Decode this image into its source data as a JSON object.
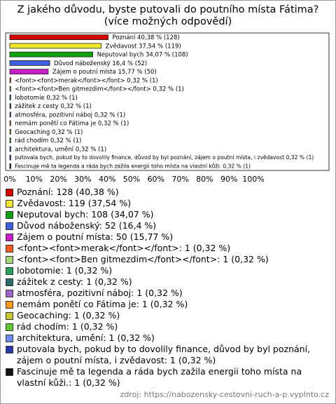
{
  "chart_data": {
    "type": "bar",
    "orientation": "horizontal",
    "title": "Z jakého důvodu, byste putovali do poutního místa Fátima? (více možných odpovědí)",
    "values": [
      40.38,
      37.54,
      34.07,
      16.4,
      15.77,
      0.32,
      0.32,
      0.32,
      0.32,
      0.32,
      0.32,
      0.32,
      0.32,
      0.32,
      0.32,
      0.32
    ],
    "value_labels": [
      "Poznání 40,38 % (128)",
      "Zvědavost 37,54 % (119)",
      "Neputoval bych 34,07 % (108)",
      "Důvod náboženský 16,4 % (52)",
      "Zájem o poutní místa 15,77 % (50)",
      "<font><font>merak</font></font> 0,32 % (1)",
      "<font><font>Ben gitmezdim</font></font> 0,32 % (1)",
      "lobotomie 0,32 % (1)",
      "zážitek z cesty 0,32 % (1)",
      "atmosféra, pozitivní náboj 0,32 % (1)",
      "nemám ponětí co Fátima je 0,32 % (1)",
      "Geocaching 0,32 % (1)",
      "rád chodím 0,32 % (1)",
      "architektura, umění 0,32 % (1)",
      "putovala bych, pokud by to dovolily finance, důvod by byl poznání, zájem o poutní místa, i zvědavost 0,32 % (1)",
      "Fascinuje mě ta legenda a ráda bych zažila energii toho místa na vlastní kůži. 0,32 % (1)"
    ],
    "legend_labels": [
      "Poznání: 128 (40,38 %)",
      "Zvědavost: 119 (37,54 %)",
      "Neputoval bych: 108 (34,07 %)",
      "Důvod náboženský: 52 (16,4 %)",
      "Zájem o poutní místa: 50 (15,77 %)",
      "<font><font>merak</font></font>: 1 (0,32 %)",
      "<font><font>Ben gitmezdim</font></font>: 1 (0,32 %)",
      "lobotomie: 1 (0,32 %)",
      "zážitek z cesty: 1 (0,32 %)",
      "atmosféra, pozitivní náboj: 1 (0,32 %)",
      "nemám ponětí co Fátima je: 1 (0,32 %)",
      "Geocaching: 1 (0,32 %)",
      "rád chodím: 1 (0,32 %)",
      "architektura, umění: 1 (0,32 %)",
      "putovala bych, pokud by to dovolily finance, důvod by byl poznání, zájem o poutní místa, i zvědavost: 1 (0,32 %)",
      "Fascinuje mě ta legenda a ráda bych zažila energii toho místa na vlastní kůži.: 1 (0,32 %)"
    ],
    "colors": [
      "#d40000",
      "#f2e530",
      "#10a010",
      "#3d5fe0",
      "#c81ec8",
      "#ff5a1f",
      "#a8d878",
      "#2aa060",
      "#2f6a6a",
      "#9a66cc",
      "#ff9a1a",
      "#c8c832",
      "#66c830",
      "#6a8cf0",
      "#2a3aa8",
      "#111111"
    ],
    "xlim": [
      0,
      100
    ],
    "xticks": [
      {
        "value": 0,
        "label": "0%"
      },
      {
        "value": 10,
        "label": "10%"
      },
      {
        "value": 20,
        "label": "20%"
      },
      {
        "value": 30,
        "label": "30%"
      },
      {
        "value": 40,
        "label": "40%"
      },
      {
        "value": 50,
        "label": "50%"
      },
      {
        "value": 60,
        "label": "60%"
      },
      {
        "value": 70,
        "label": "70%"
      },
      {
        "value": 80,
        "label": "80%"
      },
      {
        "value": 90,
        "label": "90%"
      },
      {
        "value": 100,
        "label": "100%"
      }
    ],
    "source": "zdroj: https://nabozensky-cestovni-ruch-a-p.vyplnto.cz"
  }
}
